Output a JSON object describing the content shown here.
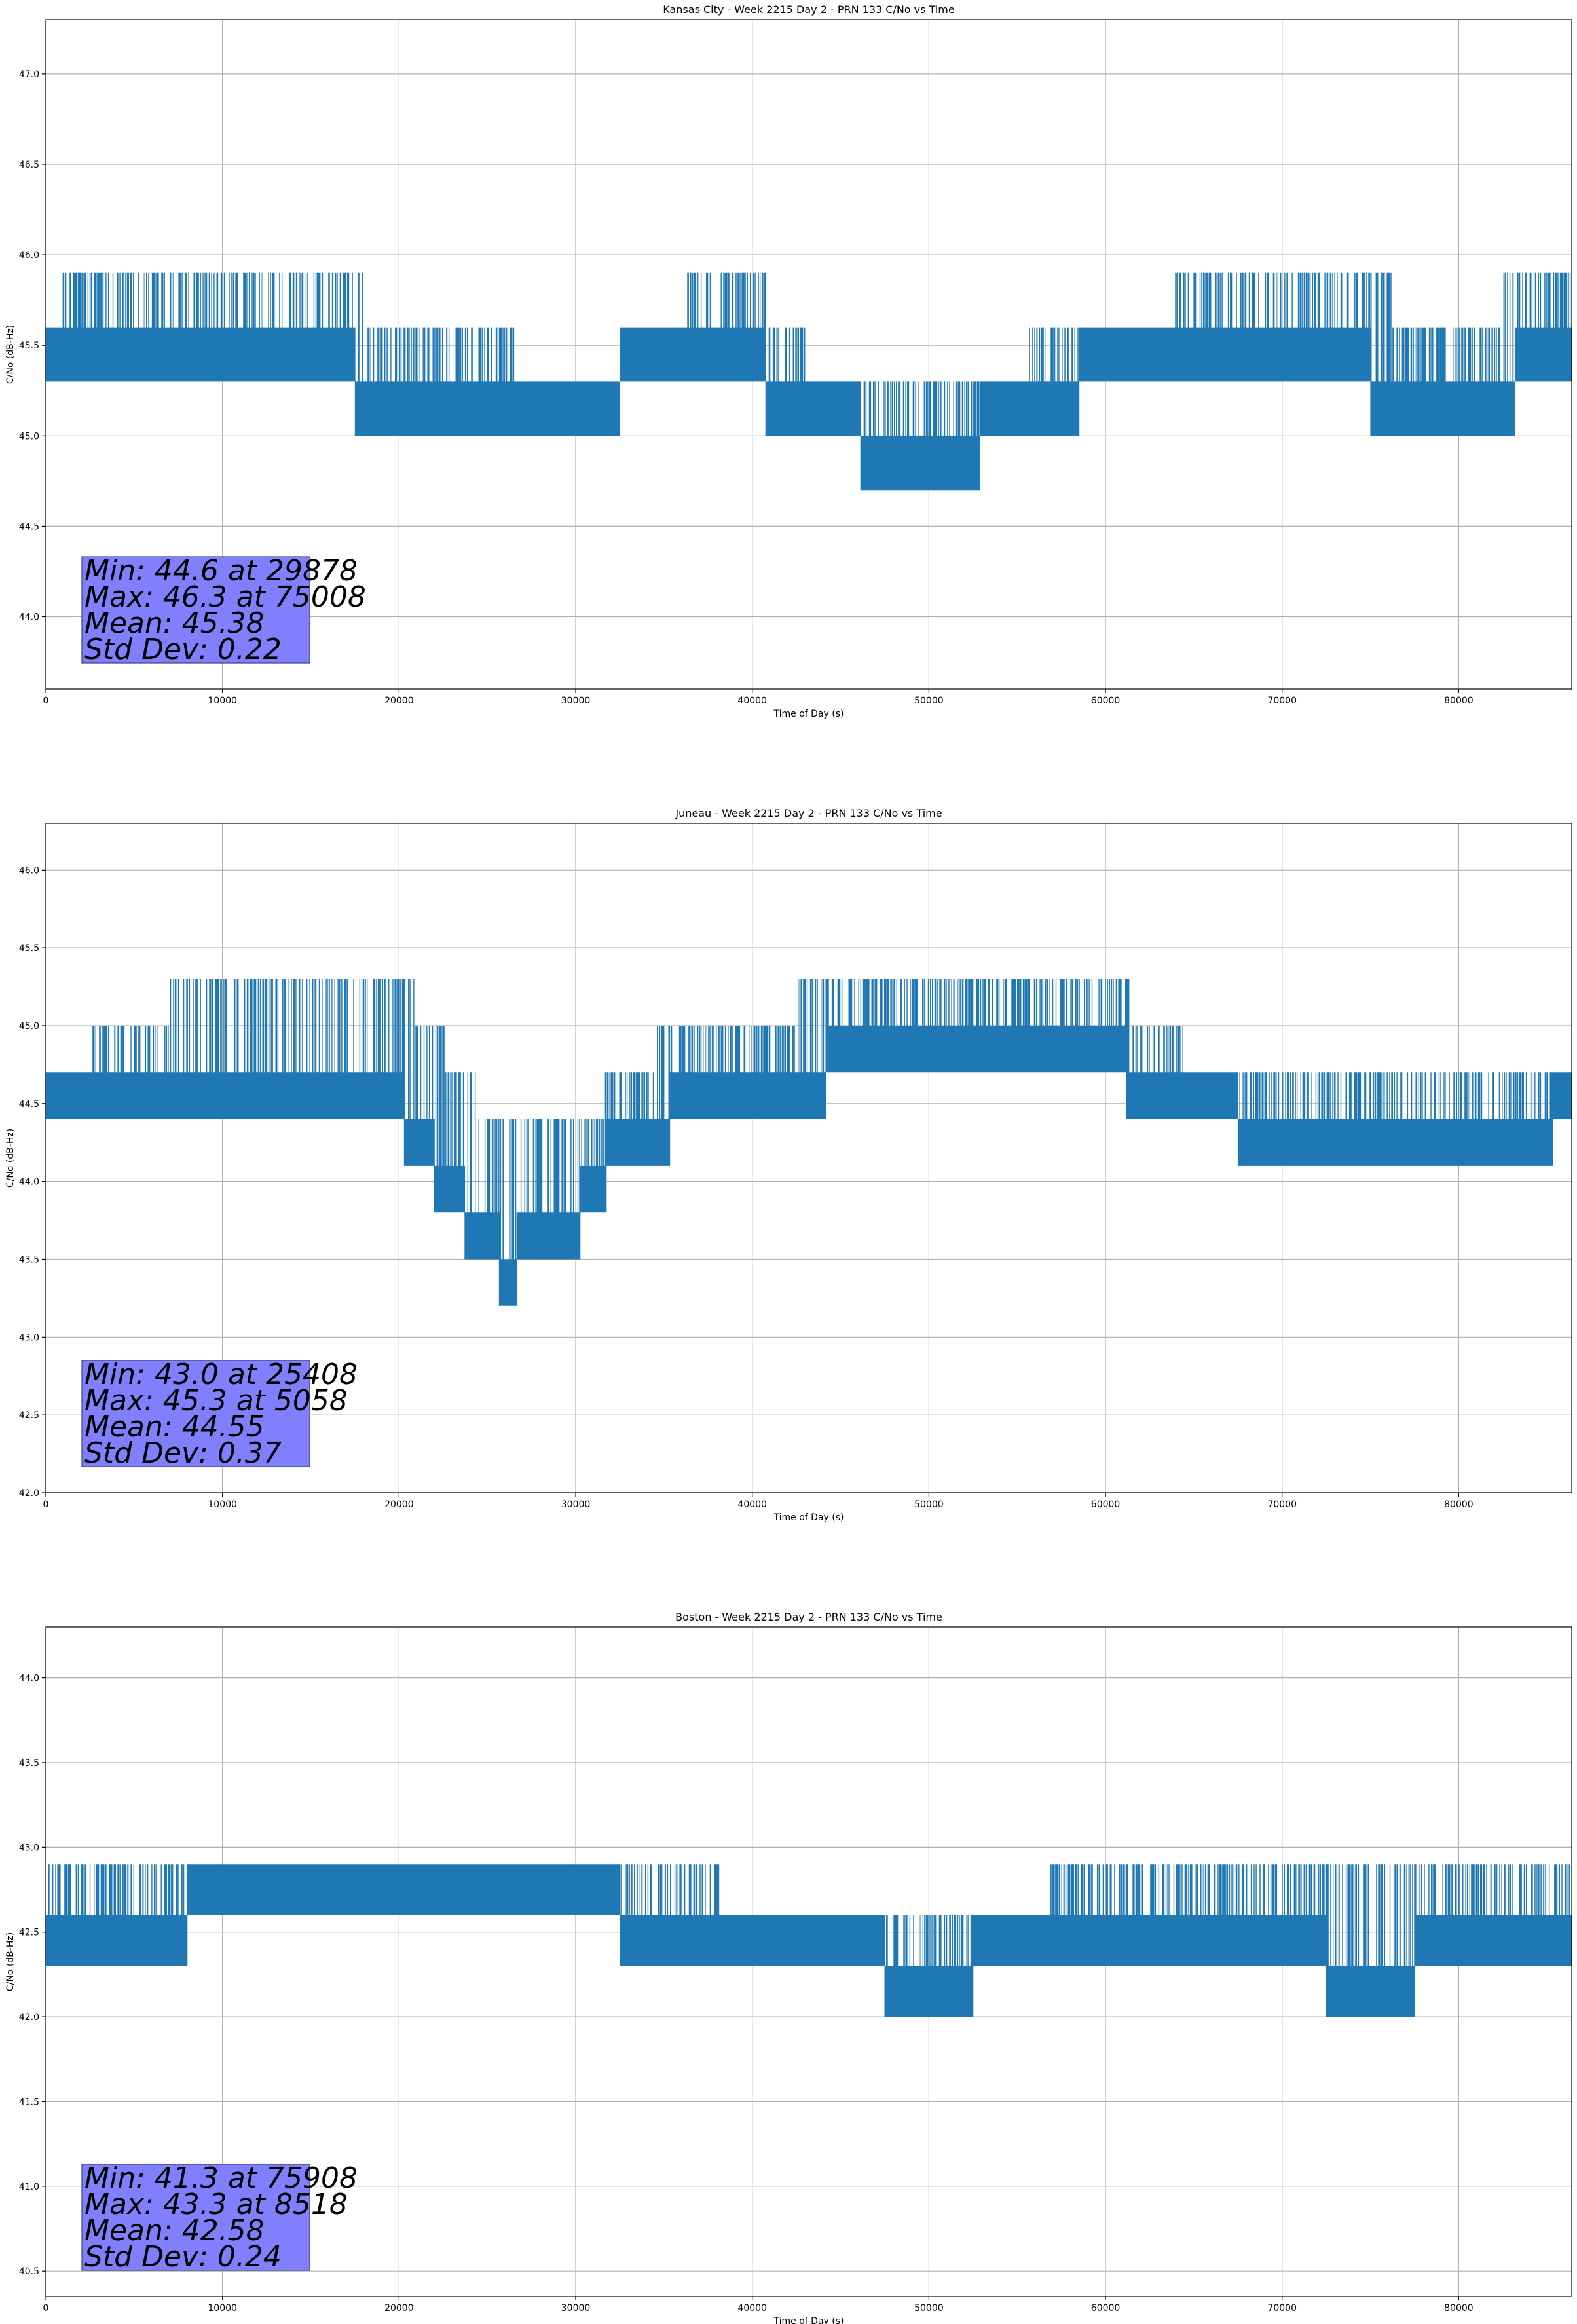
{
  "chart_data": [
    {
      "type": "line",
      "title": "Kansas City - Week 2215 Day 2 - PRN 133 C/No vs Time",
      "xlabel": "Time of Day (s)",
      "ylabel": "C/No (dB-Hz)",
      "xlim": [
        0,
        86400
      ],
      "ylim": [
        43.6,
        47.3
      ],
      "xticks": [
        0,
        10000,
        20000,
        30000,
        40000,
        50000,
        60000,
        70000,
        80000
      ],
      "yticks": [
        44.0,
        44.5,
        45.0,
        45.5,
        46.0,
        46.5,
        47.0
      ],
      "grid": true,
      "series": [
        {
          "name": "C/No",
          "color": "#1f77b4",
          "segments": [
            {
              "x": [
                0,
                2000,
                15000,
                20000,
                25000,
                28000,
                31000,
                34000,
                40000,
                41500,
                45000,
                48000,
                51000,
                54000,
                57000,
                60000,
                70000,
                80000,
                86400
              ],
              "lo": [
                45.3,
                45.3,
                45.3,
                45.0,
                45.0,
                45.0,
                45.0,
                45.3,
                45.3,
                45.0,
                45.0,
                44.6,
                44.6,
                45.0,
                45.0,
                45.3,
                45.3,
                45.0,
                45.3
              ],
              "hi": [
                45.6,
                46.0,
                46.0,
                45.6,
                45.6,
                45.3,
                45.3,
                45.6,
                46.0,
                45.6,
                45.3,
                45.3,
                45.3,
                45.3,
                45.6,
                45.6,
                46.0,
                45.6,
                46.0
              ]
            }
          ]
        }
      ],
      "annotation": {
        "min": "Min: 44.6 at 29878",
        "max": "Max: 46.3 at 75008",
        "mean": "Mean: 45.38",
        "std": "Std Dev: 0.22"
      }
    },
    {
      "type": "line",
      "title": "Juneau - Week 2215 Day 2 - PRN 133 C/No vs Time",
      "xlabel": "Time of Day (s)",
      "ylabel": "C/No (dB-Hz)",
      "xlim": [
        0,
        86400
      ],
      "ylim": [
        42.0,
        46.3
      ],
      "xticks": [
        0,
        10000,
        20000,
        30000,
        40000,
        50000,
        60000,
        70000,
        80000
      ],
      "yticks": [
        42.0,
        42.5,
        43.0,
        43.5,
        44.0,
        44.5,
        45.0,
        45.5,
        46.0
      ],
      "grid": true,
      "series": [
        {
          "name": "C/No",
          "color": "#1f77b4",
          "segments": [
            {
              "x": [
                0,
                4000,
                10000,
                20000,
                24000,
                26000,
                30000,
                32000,
                36000,
                40000,
                45000,
                50000,
                55000,
                60000,
                67000,
                70000,
                75000,
                80000,
                86400
              ],
              "lo": [
                44.3,
                44.3,
                44.3,
                44.3,
                43.6,
                43.3,
                43.6,
                44.0,
                44.3,
                44.3,
                44.6,
                44.6,
                44.6,
                44.6,
                44.3,
                44.0,
                44.0,
                44.0,
                44.3
              ],
              "hi": [
                44.6,
                45.0,
                45.3,
                45.3,
                44.6,
                44.3,
                44.3,
                44.6,
                45.0,
                45.0,
                45.3,
                45.3,
                45.3,
                45.3,
                44.6,
                44.6,
                44.6,
                44.6,
                44.6
              ]
            }
          ]
        }
      ],
      "annotation": {
        "min": "Min: 43.0 at 25408",
        "max": "Max: 45.3 at 5058",
        "mean": "Mean: 44.55",
        "std": "Std Dev: 0.37"
      }
    },
    {
      "type": "line",
      "title": "Boston - Week 2215 Day 2 - PRN 133 C/No vs Time",
      "xlabel": "Time of Day (s)",
      "ylabel": "C/No (dB-Hz)",
      "xlim": [
        0,
        86400
      ],
      "ylim": [
        40.35,
        44.3
      ],
      "xticks": [
        0,
        10000,
        20000,
        30000,
        40000,
        50000,
        60000,
        70000,
        80000
      ],
      "yticks": [
        40.5,
        41.0,
        41.5,
        42.0,
        42.5,
        43.0,
        43.5,
        44.0
      ],
      "grid": true,
      "series": [
        {
          "name": "C/No",
          "color": "#1f77b4",
          "segments": [
            {
              "x": [
                0,
                6000,
                10000,
                20000,
                30000,
                35000,
                40000,
                45000,
                50000,
                55000,
                60000,
                65000,
                70000,
                75000,
                80000,
                86400
              ],
              "lo": [
                42.3,
                42.3,
                42.6,
                42.6,
                42.6,
                42.3,
                42.3,
                42.3,
                42.0,
                42.3,
                42.3,
                42.3,
                42.3,
                42.0,
                42.3,
                42.3
              ],
              "hi": [
                43.0,
                43.0,
                43.0,
                43.0,
                43.0,
                43.0,
                42.6,
                42.6,
                42.6,
                42.6,
                43.0,
                43.0,
                43.0,
                43.0,
                43.0,
                43.0
              ]
            }
          ]
        }
      ],
      "annotation": {
        "min": "Min: 41.3 at 75908",
        "max": "Max: 43.3 at 8518",
        "mean": "Mean: 42.58",
        "std": "Std Dev: 0.24"
      }
    }
  ]
}
